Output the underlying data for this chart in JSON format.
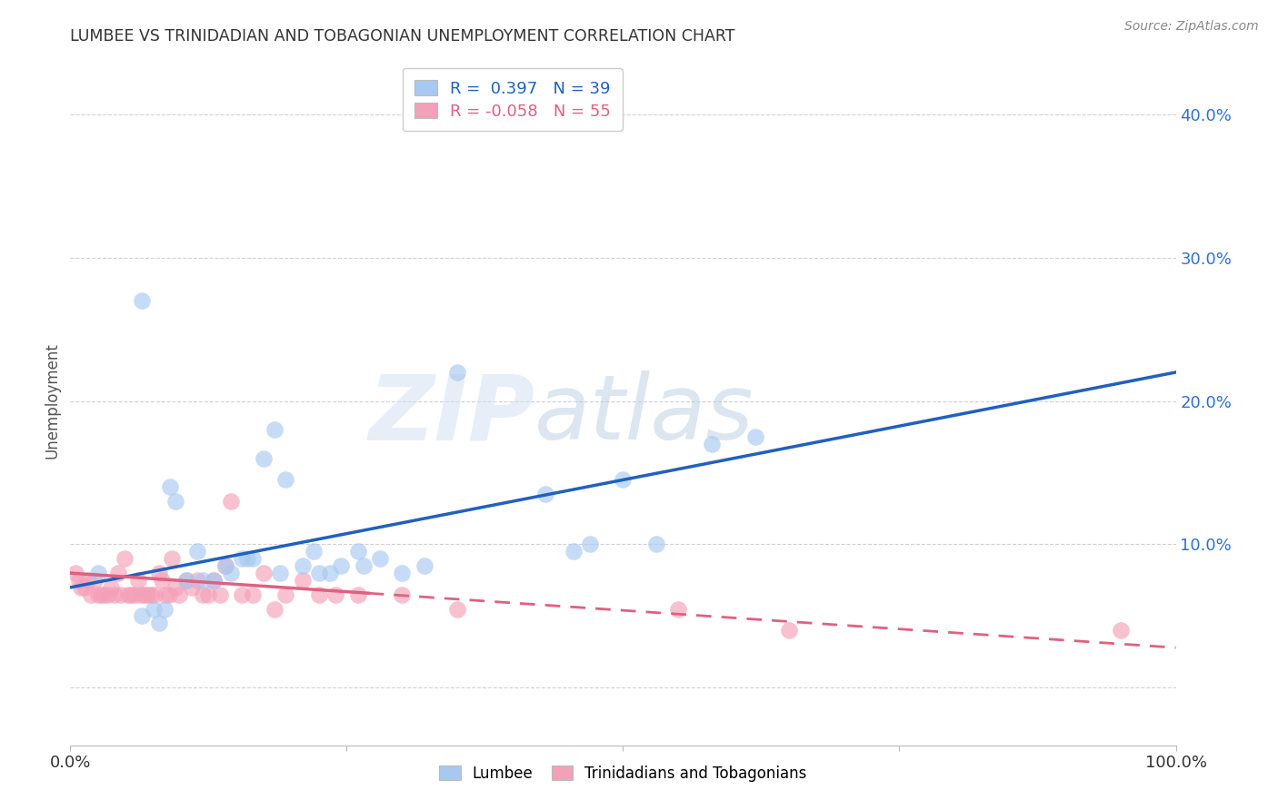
{
  "title": "LUMBEE VS TRINIDADIAN AND TOBAGONIAN UNEMPLOYMENT CORRELATION CHART",
  "source": "Source: ZipAtlas.com",
  "ylabel": "Unemployment",
  "y_ticks": [
    0.0,
    0.1,
    0.2,
    0.3,
    0.4
  ],
  "y_tick_labels": [
    "",
    "10.0%",
    "20.0%",
    "30.0%",
    "40.0%"
  ],
  "xlim": [
    0.0,
    1.0
  ],
  "ylim": [
    -0.04,
    0.44
  ],
  "lumbee_R": 0.397,
  "lumbee_N": 39,
  "trini_R": -0.058,
  "trini_N": 55,
  "lumbee_color": "#a8c8f0",
  "trini_color": "#f4a0b8",
  "lumbee_line_color": "#2060c0",
  "trini_line_color": "#e06080",
  "background_color": "#ffffff",
  "grid_color": "#cccccc",
  "watermark_zip": "ZIP",
  "watermark_atlas": "atlas",
  "lumbee_x": [
    0.025,
    0.065,
    0.075,
    0.085,
    0.095,
    0.105,
    0.115,
    0.13,
    0.14,
    0.155,
    0.165,
    0.175,
    0.185,
    0.195,
    0.21,
    0.22,
    0.235,
    0.245,
    0.26,
    0.28,
    0.3,
    0.32,
    0.35,
    0.43,
    0.47,
    0.5,
    0.53,
    0.58,
    0.62,
    0.065,
    0.08,
    0.09,
    0.12,
    0.145,
    0.16,
    0.19,
    0.225,
    0.265,
    0.455
  ],
  "lumbee_y": [
    0.08,
    0.27,
    0.055,
    0.055,
    0.13,
    0.075,
    0.095,
    0.075,
    0.085,
    0.09,
    0.09,
    0.16,
    0.18,
    0.145,
    0.085,
    0.095,
    0.08,
    0.085,
    0.095,
    0.09,
    0.08,
    0.085,
    0.22,
    0.135,
    0.1,
    0.145,
    0.1,
    0.17,
    0.175,
    0.05,
    0.045,
    0.14,
    0.075,
    0.08,
    0.09,
    0.08,
    0.08,
    0.085,
    0.095
  ],
  "trini_x": [
    0.005,
    0.008,
    0.01,
    0.013,
    0.016,
    0.019,
    0.022,
    0.025,
    0.028,
    0.031,
    0.034,
    0.037,
    0.04,
    0.043,
    0.046,
    0.049,
    0.052,
    0.055,
    0.058,
    0.061,
    0.064,
    0.067,
    0.07,
    0.073,
    0.076,
    0.08,
    0.083,
    0.086,
    0.089,
    0.092,
    0.095,
    0.098,
    0.105,
    0.11,
    0.115,
    0.12,
    0.125,
    0.13,
    0.135,
    0.14,
    0.145,
    0.155,
    0.165,
    0.175,
    0.185,
    0.195,
    0.21,
    0.225,
    0.24,
    0.26,
    0.3,
    0.35,
    0.55,
    0.65,
    0.95
  ],
  "trini_y": [
    0.08,
    0.075,
    0.07,
    0.07,
    0.075,
    0.065,
    0.075,
    0.065,
    0.065,
    0.065,
    0.065,
    0.07,
    0.065,
    0.08,
    0.065,
    0.09,
    0.065,
    0.065,
    0.065,
    0.075,
    0.065,
    0.065,
    0.065,
    0.065,
    0.065,
    0.08,
    0.075,
    0.065,
    0.065,
    0.09,
    0.07,
    0.065,
    0.075,
    0.07,
    0.075,
    0.065,
    0.065,
    0.075,
    0.065,
    0.085,
    0.13,
    0.065,
    0.065,
    0.08,
    0.055,
    0.065,
    0.075,
    0.065,
    0.065,
    0.065,
    0.065,
    0.055,
    0.055,
    0.04,
    0.04
  ]
}
